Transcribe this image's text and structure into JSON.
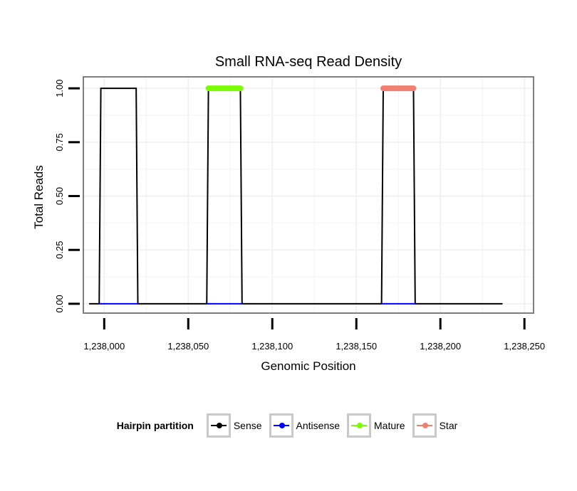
{
  "chart_data": {
    "type": "line",
    "title": "Small RNA-seq Read Density",
    "xlabel": "Genomic Position",
    "ylabel": "Total Reads",
    "xlim": [
      1237988,
      1238255
    ],
    "ylim": [
      -0.04,
      1.05
    ],
    "x_ticks": [
      1238000,
      1238050,
      1238100,
      1238150,
      1238200,
      1238250
    ],
    "x_tick_labels": [
      "1,238,000",
      "1,238,050",
      "1,238,100",
      "1,238,150",
      "1,238,200",
      "1,238,250"
    ],
    "y_ticks": [
      0,
      0.25,
      0.5,
      0.75,
      1.0
    ],
    "y_tick_labels": [
      "0.00",
      "0.25",
      "0.50",
      "0.75",
      "1.00"
    ],
    "grid": true,
    "series": [
      {
        "name": "Sense",
        "color": "#000000",
        "x": [
          1237991,
          1237997,
          1237998,
          1238019,
          1238020,
          1238061,
          1238062,
          1238081,
          1238082,
          1238165,
          1238166,
          1238184,
          1238185,
          1238237
        ],
        "y": [
          0,
          0,
          1,
          1,
          0,
          0,
          1,
          1,
          0,
          0,
          1,
          1,
          0,
          0
        ]
      },
      {
        "name": "Antisense",
        "color": "#0000ff",
        "x": [
          1237997,
          1238020,
          1238061,
          1238082,
          1238165,
          1238185
        ],
        "y": [
          0,
          0,
          0,
          0,
          0,
          0
        ],
        "segments": [
          [
            0,
            1
          ],
          [
            2,
            3
          ],
          [
            4,
            5
          ]
        ]
      },
      {
        "name": "Mature",
        "color": "#7cfc00",
        "x": [
          1238062,
          1238081
        ],
        "y": [
          1,
          1
        ]
      },
      {
        "name": "Star",
        "color": "#f08070",
        "x": [
          1238166,
          1238184
        ],
        "y": [
          1,
          1
        ]
      }
    ],
    "legend": {
      "title": "Hairpin partition",
      "position": "bottom",
      "entries": [
        "Sense",
        "Antisense",
        "Mature",
        "Star"
      ]
    }
  }
}
